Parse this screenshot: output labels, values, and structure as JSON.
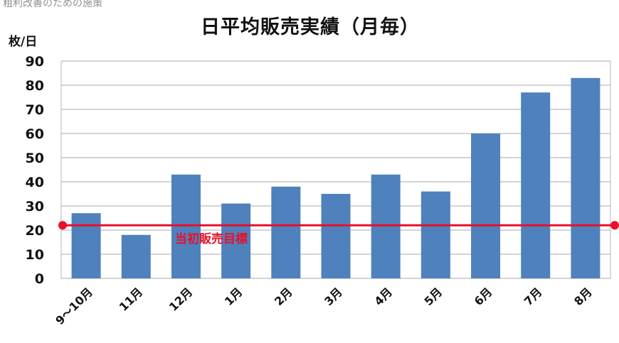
{
  "header_fragment": "粗利改善のための施策",
  "chart_data": {
    "type": "bar",
    "title": "日平均販売実績（月毎）",
    "ylabel": "枚/日",
    "xlabel": "",
    "ylim": [
      0,
      90
    ],
    "yticks": [
      0,
      10,
      20,
      30,
      40,
      50,
      60,
      70,
      80,
      90
    ],
    "grid": true,
    "categories": [
      "9～10月",
      "11月",
      "12月",
      "1月",
      "2月",
      "3月",
      "4月",
      "5月",
      "6月",
      "7月",
      "8月"
    ],
    "values": [
      27,
      18,
      43,
      31,
      38,
      35,
      43,
      36,
      60,
      77,
      83
    ],
    "bar_color": "#4f81bd",
    "target_line": {
      "label": "当初販売目標",
      "value": 22,
      "color": "#e8102a"
    }
  }
}
